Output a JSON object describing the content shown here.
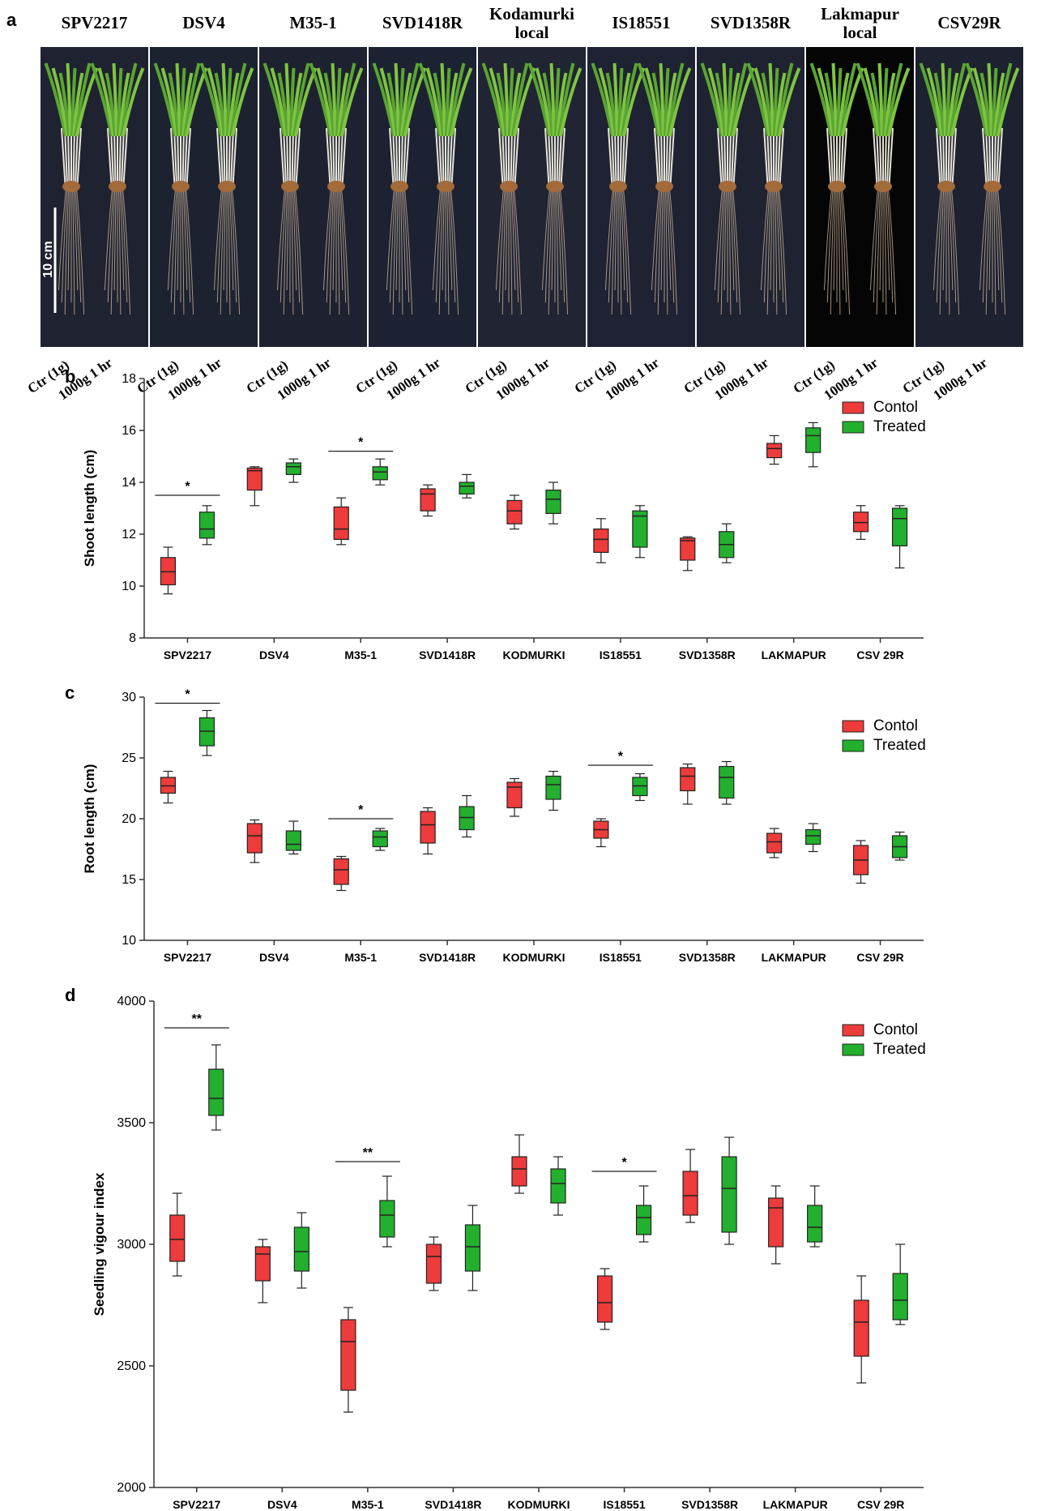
{
  "panel_a": {
    "letter": "a",
    "scale_bar": "10 cm",
    "varieties": [
      {
        "name": "SPV2217",
        "bg": "#1f2230"
      },
      {
        "name": "DSV4",
        "bg": "#1c2230"
      },
      {
        "name": "M35-1",
        "bg": "#1e2230"
      },
      {
        "name": "SVD1418R",
        "bg": "#1c2232"
      },
      {
        "name": "Kodamurki\nlocal",
        "bg": "#202433"
      },
      {
        "name": "IS18551",
        "bg": "#1e2232"
      },
      {
        "name": "SVD1358R",
        "bg": "#1f2331"
      },
      {
        "name": "Lakmapur\nlocal",
        "bg": "#050505"
      },
      {
        "name": "CSV29R",
        "bg": "#1d2130"
      }
    ],
    "treatment_labels": [
      "Ctr (1g)",
      "1000g 1 hr"
    ]
  },
  "colors": {
    "control": "#ee3b3b",
    "treated": "#22b02e",
    "axis": "#333333"
  },
  "chart_data": [
    {
      "panel": "b",
      "type": "box",
      "ylabel": "Shoot length (cm)",
      "xlabel": "",
      "ylim": [
        8,
        18
      ],
      "yticks": [
        8,
        10,
        12,
        14,
        16,
        18
      ],
      "categories": [
        "SPV2217",
        "DSV4",
        "M35-1",
        "SVD1418R",
        "KODMURKI",
        "IS18551",
        "SVD1358R",
        "LAKMAPUR",
        "CSV 29R"
      ],
      "legend": {
        "position": "top-right"
      },
      "series": [
        {
          "name": "Contol",
          "boxes": [
            [
              9.7,
              10.05,
              10.55,
              11.1,
              11.5
            ],
            [
              13.1,
              13.7,
              14.45,
              14.55,
              14.6
            ],
            [
              11.6,
              11.8,
              12.2,
              13.05,
              13.4
            ],
            [
              12.7,
              12.9,
              13.55,
              13.75,
              13.9
            ],
            [
              12.2,
              12.4,
              12.9,
              13.3,
              13.5
            ],
            [
              10.9,
              11.3,
              11.8,
              12.2,
              12.6
            ],
            [
              10.6,
              11.0,
              11.75,
              11.85,
              11.9
            ],
            [
              14.7,
              14.95,
              15.3,
              15.5,
              15.8
            ],
            [
              11.8,
              12.1,
              12.45,
              12.85,
              13.1
            ]
          ]
        },
        {
          "name": "Treated",
          "boxes": [
            [
              11.6,
              11.85,
              12.2,
              12.85,
              13.1
            ],
            [
              14.0,
              14.3,
              14.6,
              14.75,
              14.9
            ],
            [
              13.9,
              14.1,
              14.4,
              14.6,
              14.9
            ],
            [
              13.4,
              13.55,
              13.85,
              14.0,
              14.3
            ],
            [
              12.4,
              12.8,
              13.35,
              13.7,
              14.0
            ],
            [
              11.1,
              11.5,
              12.7,
              12.9,
              13.1
            ],
            [
              10.9,
              11.1,
              11.6,
              12.1,
              12.4
            ],
            [
              14.6,
              15.15,
              15.8,
              16.1,
              16.3
            ],
            [
              10.7,
              11.55,
              12.6,
              13.0,
              13.1
            ]
          ]
        }
      ],
      "significance": [
        {
          "category": 0,
          "label": "*",
          "y": 13.5
        },
        {
          "category": 2,
          "label": "*",
          "y": 15.2
        }
      ]
    },
    {
      "panel": "c",
      "type": "box",
      "ylabel": "Root length (cm)",
      "xlabel": "",
      "ylim": [
        10,
        30
      ],
      "yticks": [
        10,
        15,
        20,
        25,
        30
      ],
      "categories": [
        "SPV2217",
        "DSV4",
        "M35-1",
        "SVD1418R",
        "KODMURKI",
        "IS18551",
        "SVD1358R",
        "LAKMAPUR",
        "CSV 29R"
      ],
      "legend": {
        "position": "top-right"
      },
      "series": [
        {
          "name": "Contol",
          "boxes": [
            [
              21.3,
              22.1,
              22.7,
              23.4,
              23.9
            ],
            [
              16.4,
              17.2,
              18.6,
              19.6,
              19.9
            ],
            [
              14.1,
              14.6,
              15.8,
              16.7,
              16.9
            ],
            [
              17.1,
              18.0,
              19.5,
              20.6,
              20.9
            ],
            [
              20.2,
              20.9,
              22.6,
              23.0,
              23.3
            ],
            [
              17.7,
              18.4,
              19.1,
              19.8,
              20.0
            ],
            [
              21.2,
              22.3,
              23.5,
              24.2,
              24.5
            ],
            [
              16.8,
              17.2,
              18.1,
              18.8,
              19.2
            ],
            [
              14.7,
              15.4,
              16.6,
              17.8,
              18.2
            ]
          ]
        },
        {
          "name": "Treated",
          "boxes": [
            [
              25.2,
              26.0,
              27.2,
              28.3,
              28.9
            ],
            [
              17.1,
              17.4,
              17.9,
              19.0,
              19.8
            ],
            [
              17.4,
              17.7,
              18.5,
              19.0,
              19.2
            ],
            [
              18.5,
              19.1,
              20.1,
              21.0,
              21.9
            ],
            [
              20.7,
              21.6,
              22.8,
              23.5,
              23.9
            ],
            [
              21.5,
              21.9,
              22.7,
              23.4,
              23.7
            ],
            [
              21.2,
              21.7,
              23.4,
              24.3,
              24.7
            ],
            [
              17.3,
              17.9,
              18.6,
              19.1,
              19.6
            ],
            [
              16.6,
              16.8,
              17.7,
              18.6,
              18.9
            ]
          ]
        }
      ],
      "significance": [
        {
          "category": 0,
          "label": "*",
          "y": 29.5
        },
        {
          "category": 2,
          "label": "*",
          "y": 20.0
        },
        {
          "category": 5,
          "label": "*",
          "y": 24.4
        }
      ]
    },
    {
      "panel": "d",
      "type": "box",
      "ylabel": "Seedling vigour index",
      "xlabel": "",
      "ylim": [
        2000,
        4000
      ],
      "yticks": [
        2000,
        2500,
        3000,
        3500,
        4000
      ],
      "categories": [
        "SPV2217",
        "DSV4",
        "M35-1",
        "SVD1418R",
        "KODMURKI",
        "IS18551",
        "SVD1358R",
        "LAKMAPUR",
        "CSV 29R"
      ],
      "legend": {
        "position": "top-right"
      },
      "series": [
        {
          "name": "Contol",
          "boxes": [
            [
              2870,
              2930,
              3020,
              3120,
              3210
            ],
            [
              2760,
              2850,
              2960,
              2990,
              3020
            ],
            [
              2310,
              2400,
              2600,
              2690,
              2740
            ],
            [
              2810,
              2840,
              2950,
              3000,
              3030
            ],
            [
              3210,
              3240,
              3310,
              3360,
              3450
            ],
            [
              2650,
              2680,
              2760,
              2870,
              2900
            ],
            [
              3090,
              3120,
              3200,
              3300,
              3390
            ],
            [
              2920,
              2990,
              3150,
              3190,
              3240
            ],
            [
              2430,
              2540,
              2680,
              2770,
              2870
            ]
          ]
        },
        {
          "name": "Treated",
          "boxes": [
            [
              3470,
              3530,
              3600,
              3720,
              3820
            ],
            [
              2820,
              2890,
              2970,
              3070,
              3130
            ],
            [
              2990,
              3030,
              3120,
              3180,
              3280
            ],
            [
              2810,
              2890,
              2990,
              3080,
              3160
            ],
            [
              3120,
              3170,
              3250,
              3310,
              3360
            ],
            [
              3010,
              3040,
              3110,
              3160,
              3240
            ],
            [
              3000,
              3050,
              3230,
              3360,
              3440
            ],
            [
              2990,
              3010,
              3070,
              3160,
              3240
            ],
            [
              2670,
              2690,
              2770,
              2880,
              3000
            ]
          ]
        }
      ],
      "significance": [
        {
          "category": 0,
          "label": "**",
          "y": 3890
        },
        {
          "category": 2,
          "label": "**",
          "y": 3340
        },
        {
          "category": 5,
          "label": "*",
          "y": 3300
        }
      ]
    }
  ]
}
